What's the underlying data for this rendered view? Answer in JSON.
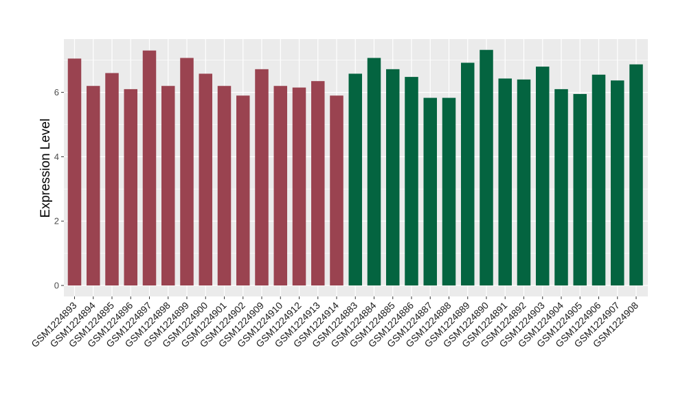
{
  "chart_data": {
    "type": "bar",
    "title": "",
    "xlabel": "",
    "ylabel": "Expression Level",
    "ylim": [
      0,
      7.6
    ],
    "y_ticks": [
      0,
      2,
      4,
      6
    ],
    "grid": true,
    "legend": "none",
    "categories": [
      "GSM1224893",
      "GSM1224894",
      "GSM1224895",
      "GSM1224896",
      "GSM1224897",
      "GSM1224898",
      "GSM1224899",
      "GSM1224900",
      "GSM1224901",
      "GSM1224902",
      "GSM1224909",
      "GSM1224910",
      "GSM1224912",
      "GSM1224913",
      "GSM1224914",
      "GSM1224883",
      "GSM1224884",
      "GSM1224885",
      "GSM1224886",
      "GSM1224887",
      "GSM1224888",
      "GSM1224889",
      "GSM1224890",
      "GSM1224891",
      "GSM1224892",
      "GSM1224903",
      "GSM1224904",
      "GSM1224905",
      "GSM1224906",
      "GSM1224907",
      "GSM1224908"
    ],
    "values": [
      7.05,
      6.2,
      6.6,
      6.1,
      7.3,
      6.2,
      7.07,
      6.58,
      6.2,
      5.9,
      6.72,
      6.2,
      6.15,
      6.35,
      5.9,
      6.58,
      7.07,
      6.72,
      6.48,
      5.83,
      5.83,
      6.92,
      7.32,
      6.43,
      6.4,
      6.8,
      6.1,
      5.95,
      6.55,
      6.37,
      6.87
    ],
    "groups": [
      0,
      0,
      0,
      0,
      0,
      0,
      0,
      0,
      0,
      0,
      0,
      0,
      0,
      0,
      0,
      1,
      1,
      1,
      1,
      1,
      1,
      1,
      1,
      1,
      1,
      1,
      1,
      1,
      1,
      1,
      1
    ],
    "colors": {
      "group_0": "#9a4350",
      "group_1": "#046440",
      "panel_bg": "#ebebeb",
      "grid": "#ffffff"
    }
  }
}
